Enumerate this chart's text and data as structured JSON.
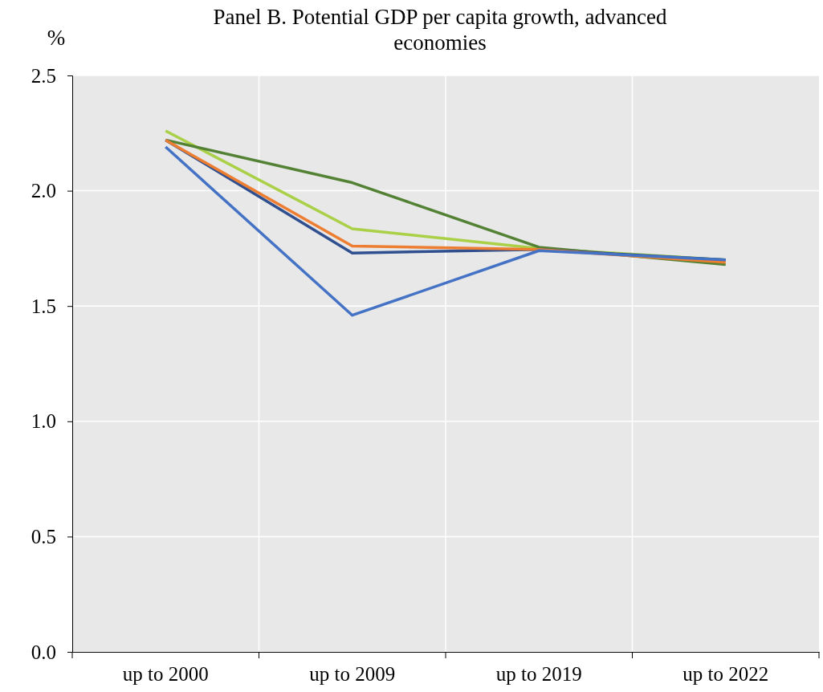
{
  "chart_data": {
    "type": "line",
    "title": "Panel B. Potential GDP per capita growth, advanced economies",
    "ylabel": "%",
    "categories": [
      "up to 2000",
      "up to 2009",
      "up to 2019",
      "up to 2022"
    ],
    "series": [
      {
        "color": "#a9d046",
        "values": [
          2.26,
          1.835,
          1.75,
          1.7
        ]
      },
      {
        "color": "#548235",
        "values": [
          2.22,
          2.035,
          1.755,
          1.68
        ]
      },
      {
        "color": "#2f4f8f",
        "values": [
          2.22,
          1.73,
          1.745,
          1.7
        ]
      },
      {
        "color": "#ed7d31",
        "values": [
          2.22,
          1.76,
          1.745,
          1.69
        ]
      },
      {
        "color": "#4472c4",
        "values": [
          2.19,
          1.46,
          1.74,
          1.7
        ]
      }
    ],
    "ylim": [
      0,
      2.5
    ],
    "yticks": [
      {
        "value": 0,
        "label": "0.0"
      },
      {
        "value": 0.5,
        "label": "0.5"
      },
      {
        "value": 1,
        "label": "1.0"
      },
      {
        "value": 1.5,
        "label": "1.5"
      },
      {
        "value": 2,
        "label": "2.0"
      },
      {
        "value": 2.5,
        "label": "2.5"
      }
    ],
    "grid": true,
    "marker": "none",
    "line_style": "solid"
  }
}
